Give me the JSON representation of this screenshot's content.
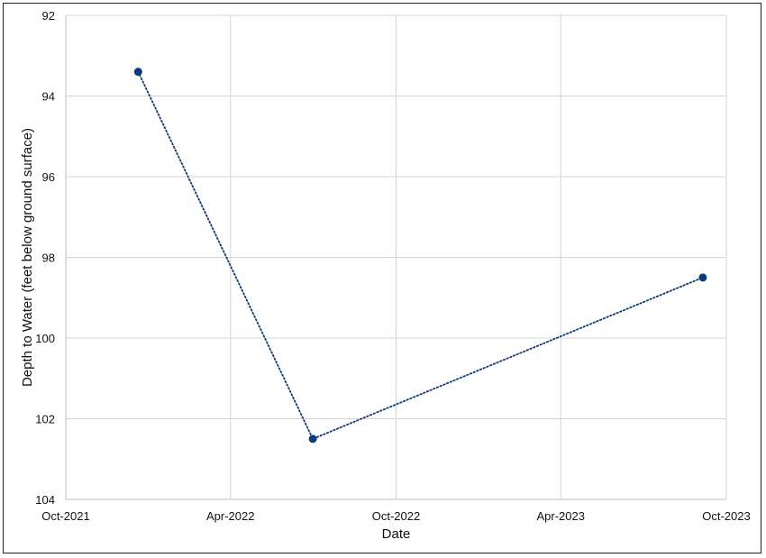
{
  "chart_data": {
    "type": "line",
    "title": "",
    "xlabel": "Date",
    "ylabel": "Depth to Water (feet below ground surface)",
    "x_ticks": [
      "Oct-2021",
      "Apr-2022",
      "Oct-2022",
      "Apr-2023",
      "Oct-2023"
    ],
    "x_tick_dates": [
      "2021-10-01",
      "2022-04-01",
      "2022-10-01",
      "2023-04-01",
      "2023-10-01"
    ],
    "xlim": [
      "2021-10-01",
      "2023-10-01"
    ],
    "y_ticks": [
      92,
      94,
      96,
      98,
      100,
      102,
      104
    ],
    "ylim": [
      92,
      104
    ],
    "y_inverted": true,
    "grid": true,
    "series": [
      {
        "x": [
          "2021-12-20",
          "2022-07-01",
          "2023-09-05"
        ],
        "y": [
          93.4,
          102.5,
          98.5
        ],
        "color": "#0b3b7a",
        "line_style": "dotted",
        "marker": "circle"
      }
    ]
  }
}
